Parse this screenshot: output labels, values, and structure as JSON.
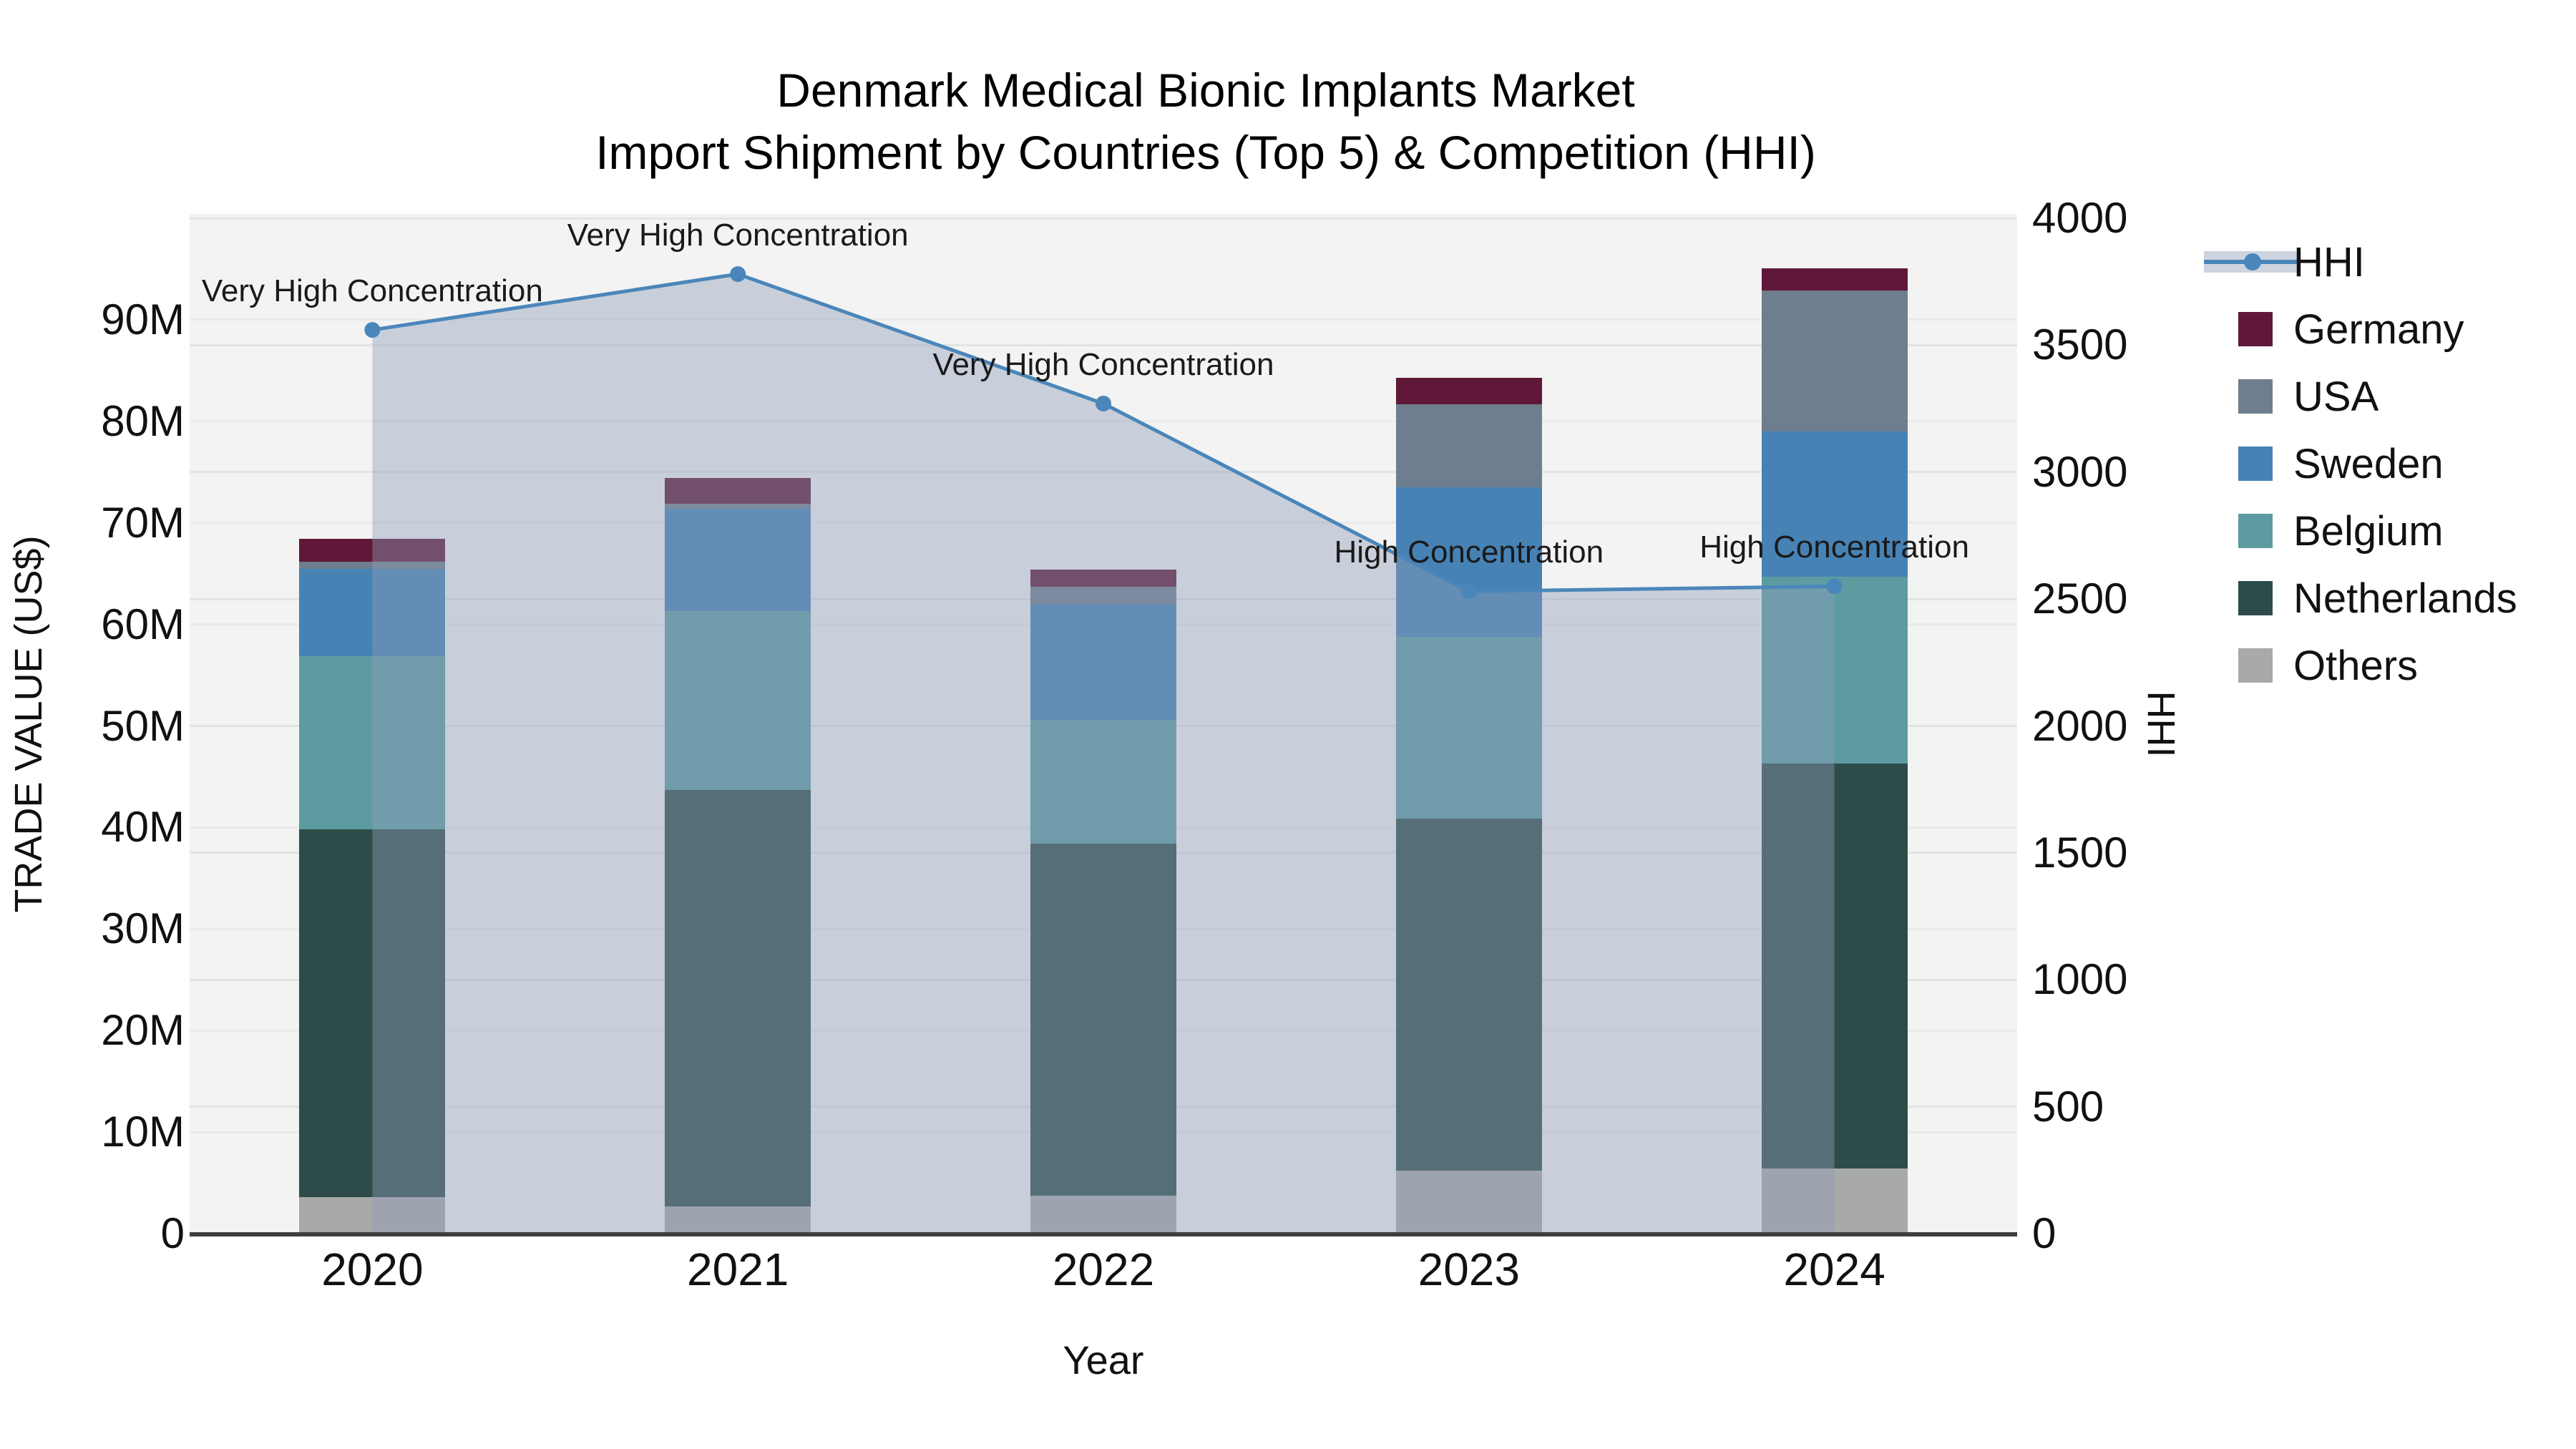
{
  "title": {
    "line1": "Denmark Medical Bionic Implants Market",
    "line2": "Import Shipment by Countries (Top 5) & Competition (HHI)"
  },
  "axes": {
    "x": {
      "label": "Year",
      "categories": [
        "2020",
        "2021",
        "2022",
        "2023",
        "2024"
      ]
    },
    "y_left": {
      "label": "TRADE VALUE (US$)",
      "max_m": 100,
      "ticks": [
        {
          "value": 0,
          "label": "0"
        },
        {
          "value": 10,
          "label": "10M"
        },
        {
          "value": 20,
          "label": "20M"
        },
        {
          "value": 30,
          "label": "30M"
        },
        {
          "value": 40,
          "label": "40M"
        },
        {
          "value": 50,
          "label": "50M"
        },
        {
          "value": 60,
          "label": "60M"
        },
        {
          "value": 70,
          "label": "70M"
        },
        {
          "value": 80,
          "label": "80M"
        },
        {
          "value": 90,
          "label": "90M"
        }
      ]
    },
    "y_right": {
      "label": "HHI",
      "max": 4000,
      "ticks": [
        {
          "value": 0,
          "label": "0"
        },
        {
          "value": 500,
          "label": "500"
        },
        {
          "value": 1000,
          "label": "1000"
        },
        {
          "value": 1500,
          "label": "1500"
        },
        {
          "value": 2000,
          "label": "2000"
        },
        {
          "value": 2500,
          "label": "2500"
        },
        {
          "value": 3000,
          "label": "3000"
        },
        {
          "value": 3500,
          "label": "3500"
        },
        {
          "value": 4000,
          "label": "4000"
        }
      ]
    }
  },
  "legend": {
    "items": [
      {
        "label": "HHI",
        "type": "line",
        "color_key": "hhi_line"
      },
      {
        "label": "Germany",
        "type": "square",
        "color_key": "germany"
      },
      {
        "label": "USA",
        "type": "square",
        "color_key": "usa"
      },
      {
        "label": "Sweden",
        "type": "square",
        "color_key": "sweden"
      },
      {
        "label": "Belgium",
        "type": "square",
        "color_key": "belgium"
      },
      {
        "label": "Netherlands",
        "type": "square",
        "color_key": "netherlands"
      },
      {
        "label": "Others",
        "type": "square",
        "color_key": "others"
      }
    ]
  },
  "colors": {
    "germany": "#5f1838",
    "usa": "#6e7e8e",
    "sweden": "#4682b4",
    "belgium": "#5c9ca0",
    "netherlands": "#2d4c49",
    "others": "#a8aaa7",
    "hhi_line": "#4a86ba",
    "hhi_fill": "rgba(142,158,186,0.42)",
    "plot_bg": "#f2f3f2",
    "grid_left": "#e9eaea",
    "grid_right": "#e2e4e4",
    "axis_line": "#3d3f3e",
    "legend_hhi_band": "#cdd4df"
  },
  "chart_data": {
    "type": "combo-stacked-bar-plus-line",
    "title": "Denmark Medical Bionic Implants Market — Import Shipment by Countries (Top 5) & Competition (HHI)",
    "xlabel": "Year",
    "ylabel_left": "TRADE VALUE (US$)",
    "ylabel_right": "HHI",
    "ylim_left_musd": [
      0,
      100
    ],
    "ylim_right_hhi": [
      0,
      4000
    ],
    "grid": true,
    "legend_position": "right",
    "categories": [
      "2020",
      "2021",
      "2022",
      "2023",
      "2024"
    ],
    "bar_unit": "US$ millions",
    "bar_stack_order_bottom_to_top": [
      "Others",
      "Netherlands",
      "Belgium",
      "Sweden",
      "USA",
      "Germany"
    ],
    "series": [
      {
        "name": "Others",
        "color_key": "others",
        "values": [
          3.6,
          2.7,
          3.7,
          6.2,
          6.4
        ]
      },
      {
        "name": "Netherlands",
        "color_key": "netherlands",
        "values": [
          36.2,
          41.0,
          34.7,
          34.7,
          39.9
        ]
      },
      {
        "name": "Belgium",
        "color_key": "belgium",
        "values": [
          17.1,
          17.6,
          12.2,
          17.9,
          18.4
        ]
      },
      {
        "name": "Sweden",
        "color_key": "sweden",
        "values": [
          8.6,
          10.1,
          11.4,
          14.7,
          14.3
        ]
      },
      {
        "name": "USA",
        "color_key": "usa",
        "values": [
          0.7,
          0.5,
          1.7,
          8.2,
          13.9
        ]
      },
      {
        "name": "Germany",
        "color_key": "germany",
        "values": [
          2.2,
          2.5,
          1.7,
          2.6,
          2.2
        ]
      }
    ],
    "bar_totals_musd": [
      68.4,
      74.4,
      65.4,
      84.3,
      95.1
    ],
    "line": {
      "name": "HHI",
      "axis": "right",
      "values": [
        3560,
        3780,
        3270,
        2530,
        2550
      ],
      "fill_to_zero": true,
      "annotations": [
        "Very High Concentration",
        "Very High Concentration",
        "Very High Concentration",
        "High Concentration",
        "High Concentration"
      ]
    }
  }
}
